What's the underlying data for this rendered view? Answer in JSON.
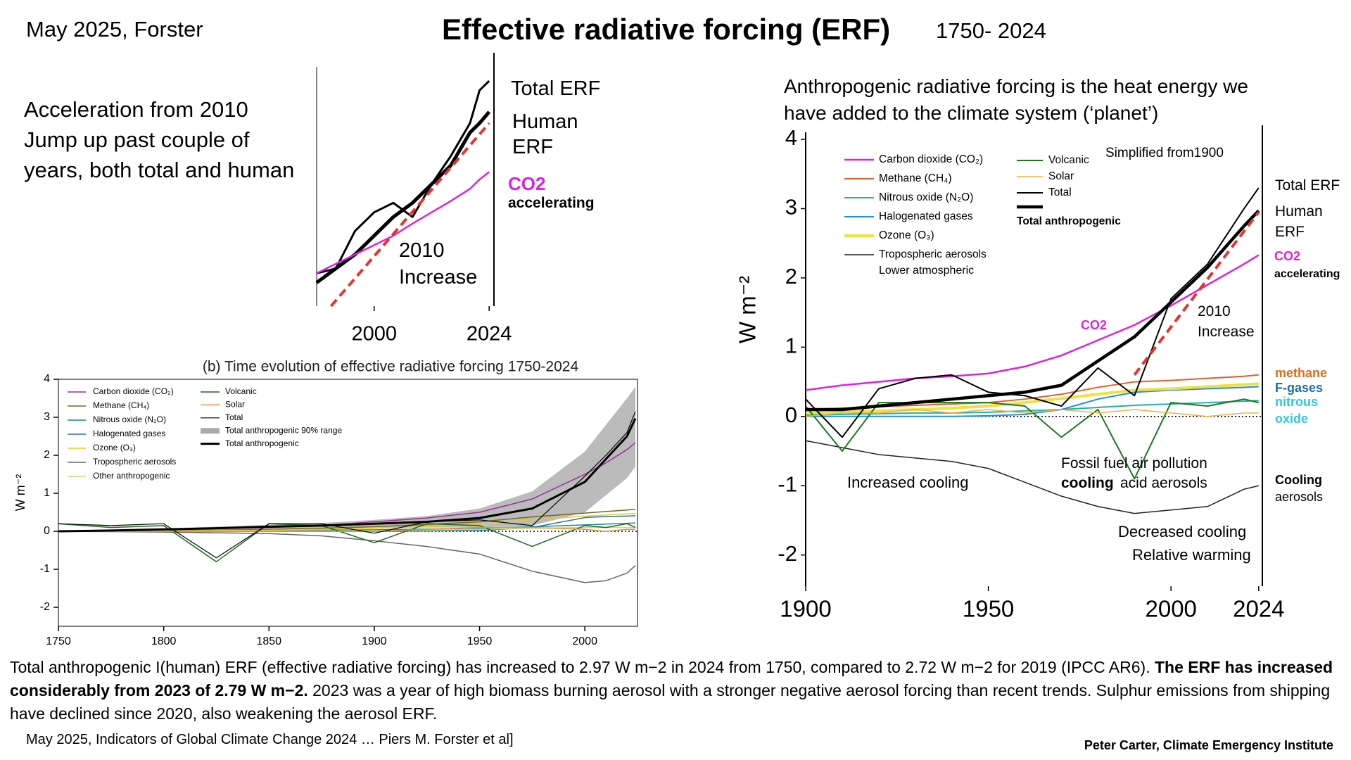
{
  "header": {
    "date": "May 2025, Forster",
    "title": "Effective radiative forcing (ERF)",
    "period": "1750- 2024"
  },
  "summary": "Acceleration from 2010 Jump up past couple of years, both total and human",
  "paragraph": [
    "Total anthropogenic I(human) ERF (effective radiative forcing) has increased to 2.97 W m−2 in 2024 from 1750, compared to 2.72  W m−2 for 2019 (IPCC AR6).",
    "The ERF has increased considerably from 2023 of 2.79 W m−2.",
    "2023 was a year of high biomass burning aerosol with a stronger negative aerosol forcing than recent trends. Sulphur emissions from shipping have declined since 2020, also weakening the aerosol ERF."
  ],
  "source": "May 2025, Indicators of Global Climate Change 2024 … Piers M. Forster et al]",
  "credit": "Peter Carter, Climate Emergency Institute",
  "chart_data": [
    {
      "type": "line",
      "xlim": [
        1988,
        2025
      ],
      "xticks": [
        2000,
        2024
      ],
      "ylim": [
        0.9,
        3.45
      ],
      "x": [
        1988,
        1992,
        1996,
        2000,
        2004,
        2008,
        2012,
        2016,
        2020,
        2022,
        2024
      ],
      "series": [
        {
          "name": "Total ERF",
          "color": "#000000",
          "width": 3,
          "values": [
            1.25,
            1.3,
            1.7,
            1.9,
            2.0,
            1.85,
            2.2,
            2.5,
            2.85,
            3.2,
            3.3
          ]
        },
        {
          "name": "Human ERF",
          "color": "#000000",
          "width": 5,
          "values": [
            1.15,
            1.3,
            1.45,
            1.65,
            1.85,
            2.0,
            2.2,
            2.4,
            2.75,
            2.85,
            2.97
          ]
        },
        {
          "name": "CO2",
          "color": "#e020e0",
          "width": 2.5,
          "values": [
            1.25,
            1.35,
            1.45,
            1.55,
            1.65,
            1.78,
            1.9,
            2.02,
            2.15,
            2.25,
            2.33
          ]
        }
      ],
      "trend": {
        "label": "2010 Increase",
        "color": "#e8322b",
        "x": [
          1991,
          2024
        ],
        "values": [
          0.9,
          2.85
        ]
      },
      "annotations": [
        {
          "text": "accelerating",
          "color": "#000000",
          "bold": true
        }
      ]
    },
    {
      "type": "line",
      "title": "(b) Time evolution of effective radiative forcing 1750-2024",
      "ylabel": "W m⁻²",
      "xlim": [
        1750,
        2025
      ],
      "xticks": [
        1750,
        1800,
        1850,
        1900,
        1950,
        2000
      ],
      "ylim": [
        -2.5,
        4
      ],
      "yticks": [
        -2,
        -1,
        0,
        1,
        2,
        3,
        4
      ],
      "x": [
        1750,
        1775,
        1800,
        1825,
        1850,
        1875,
        1900,
        1925,
        1950,
        1975,
        2000,
        2010,
        2020,
        2024
      ],
      "series": [
        {
          "name": "Carbon dioxide (CO₂)",
          "color": "#9a2ea0",
          "width": 1.5,
          "values": [
            0,
            0.02,
            0.04,
            0.07,
            0.1,
            0.15,
            0.25,
            0.35,
            0.5,
            0.85,
            1.5,
            1.8,
            2.15,
            2.33
          ]
        },
        {
          "name": "Methane (CH₄)",
          "color": "#7a6420",
          "width": 1.5,
          "values": [
            0,
            0.01,
            0.02,
            0.03,
            0.05,
            0.08,
            0.12,
            0.18,
            0.25,
            0.38,
            0.48,
            0.52,
            0.56,
            0.58
          ]
        },
        {
          "name": "Nitrous oxide (N₂O)",
          "color": "#1a8a8a",
          "width": 1.5,
          "values": [
            0,
            0,
            0.01,
            0.01,
            0.02,
            0.03,
            0.04,
            0.06,
            0.08,
            0.12,
            0.17,
            0.19,
            0.21,
            0.22
          ]
        },
        {
          "name": "Halogenated gases",
          "color": "#2a6fa8",
          "width": 1.5,
          "values": [
            0,
            0,
            0,
            0,
            0,
            0,
            0,
            0.01,
            0.02,
            0.1,
            0.36,
            0.39,
            0.4,
            0.41
          ]
        },
        {
          "name": "Ozone (O₃)",
          "color": "#e8c82a",
          "width": 1.5,
          "values": [
            0,
            0.01,
            0.01,
            0.02,
            0.03,
            0.05,
            0.08,
            0.12,
            0.18,
            0.3,
            0.4,
            0.43,
            0.46,
            0.47
          ]
        },
        {
          "name": "Tropospheric aerosols",
          "color": "#666666",
          "width": 1.5,
          "values": [
            0,
            -0.01,
            -0.02,
            -0.04,
            -0.06,
            -0.12,
            -0.25,
            -0.4,
            -0.6,
            -1.05,
            -1.35,
            -1.3,
            -1.1,
            -0.9
          ]
        },
        {
          "name": "Other anthropogenic",
          "color": "#b8e07a",
          "width": 1.5,
          "values": [
            0,
            0,
            0,
            0,
            0,
            0.01,
            0.02,
            0.03,
            0.05,
            0.08,
            0.1,
            0.1,
            0.1,
            0.1
          ]
        },
        {
          "name": "Volcanic",
          "color": "#1a6b1a",
          "width": 1.5,
          "values": [
            0.2,
            0.1,
            0.15,
            -0.8,
            0.2,
            0.15,
            -0.3,
            0.2,
            0.15,
            -0.4,
            0.15,
            0.1,
            0.2,
            0.1
          ]
        },
        {
          "name": "Solar",
          "color": "#e8903a",
          "width": 1.5,
          "values": [
            0,
            0,
            0,
            0,
            0,
            0,
            0,
            0.05,
            0.1,
            0.1,
            0.05,
            0,
            0.05,
            0.05
          ]
        },
        {
          "name": "Total",
          "color": "#000000",
          "width": 1.2,
          "values": [
            0.2,
            0.15,
            0.2,
            -0.7,
            0.2,
            0.2,
            -0.05,
            0.25,
            0.3,
            0.15,
            1.45,
            2.0,
            2.6,
            3.15
          ]
        },
        {
          "name": "Total anthropogenic 90% range",
          "color": "#aaaaaa",
          "low": [
            0,
            0,
            0.02,
            0.04,
            0.06,
            0.08,
            0.1,
            0.1,
            0.1,
            0.15,
            0.5,
            0.95,
            1.4,
            1.7
          ],
          "high": [
            0,
            0.04,
            0.08,
            0.12,
            0.17,
            0.22,
            0.3,
            0.4,
            0.6,
            1.05,
            2.1,
            2.8,
            3.5,
            3.8
          ]
        },
        {
          "name": "Total anthropogenic",
          "color": "#000000",
          "width": 3,
          "values": [
            0,
            0.02,
            0.05,
            0.08,
            0.12,
            0.15,
            0.2,
            0.25,
            0.35,
            0.6,
            1.3,
            1.9,
            2.5,
            2.97
          ]
        }
      ]
    },
    {
      "type": "line",
      "title": "Anthropogenic radiative forcing is the heat energy we have added to the climate system (‘planet’)",
      "ylabel": "W m⁻²",
      "xlim": [
        1900,
        2025
      ],
      "xticks": [
        1900,
        1950,
        2000,
        2024
      ],
      "ylim": [
        -2.45,
        4.0
      ],
      "yticks": [
        -2,
        -1,
        0,
        1,
        2,
        3,
        4
      ],
      "x": [
        1900,
        1910,
        1920,
        1930,
        1940,
        1950,
        1960,
        1970,
        1980,
        1990,
        2000,
        2010,
        2020,
        2024
      ],
      "series": [
        {
          "name": "Carbon dioxide (CO₂)",
          "color": "#e020e0",
          "width": 2.5,
          "values": [
            0.38,
            0.45,
            0.5,
            0.55,
            0.58,
            0.62,
            0.72,
            0.88,
            1.1,
            1.32,
            1.6,
            1.9,
            2.2,
            2.33
          ]
        },
        {
          "name": "Methane (CH₄)",
          "color": "#e0602a",
          "width": 2,
          "values": [
            0.1,
            0.12,
            0.14,
            0.16,
            0.18,
            0.2,
            0.25,
            0.32,
            0.42,
            0.5,
            0.52,
            0.55,
            0.58,
            0.6
          ]
        },
        {
          "name": "Nitrous oxide (N₂O)",
          "color": "#20b0b0",
          "width": 2,
          "values": [
            0.02,
            0.03,
            0.04,
            0.05,
            0.05,
            0.06,
            0.08,
            0.1,
            0.13,
            0.16,
            0.18,
            0.2,
            0.22,
            0.23
          ]
        },
        {
          "name": "Halogenated gases",
          "color": "#1e90e0",
          "width": 2,
          "values": [
            0,
            0,
            0,
            0,
            0,
            0.01,
            0.03,
            0.1,
            0.25,
            0.35,
            0.38,
            0.4,
            0.42,
            0.43
          ]
        },
        {
          "name": "Ozone (O₃)",
          "color": "#f0e040",
          "width": 4,
          "values": [
            0.05,
            0.06,
            0.08,
            0.1,
            0.12,
            0.15,
            0.2,
            0.26,
            0.32,
            0.38,
            0.4,
            0.43,
            0.46,
            0.47
          ]
        },
        {
          "name": "Tropospheric aerosols",
          "color": "#222222",
          "width": 1.5,
          "values": [
            -0.35,
            -0.45,
            -0.55,
            -0.6,
            -0.65,
            -0.75,
            -0.95,
            -1.15,
            -1.3,
            -1.4,
            -1.35,
            -1.3,
            -1.05,
            -1.0
          ]
        },
        {
          "name": "Volcanic",
          "color": "#1a7a1a",
          "width": 2,
          "values": [
            0.15,
            -0.5,
            0.2,
            0.2,
            0.2,
            0.2,
            0.15,
            -0.3,
            0.1,
            -0.9,
            0.2,
            0.15,
            0.25,
            0.2
          ]
        },
        {
          "name": "Solar",
          "color": "#f0b040",
          "width": 1.5,
          "values": [
            0,
            0.05,
            0.05,
            0.1,
            0.05,
            0.1,
            0.05,
            0.1,
            0.05,
            0.1,
            0.05,
            0,
            0.05,
            0.05
          ]
        },
        {
          "name": "Total",
          "color": "#000000",
          "width": 2,
          "values": [
            0.25,
            -0.3,
            0.4,
            0.55,
            0.6,
            0.35,
            0.3,
            0.15,
            0.7,
            0.3,
            1.7,
            2.2,
            3.0,
            3.3
          ]
        },
        {
          "name": "Total anthropogenic",
          "color": "#000000",
          "width": 4.5,
          "values": [
            0.1,
            0.1,
            0.15,
            0.2,
            0.25,
            0.3,
            0.35,
            0.45,
            0.8,
            1.15,
            1.65,
            2.15,
            2.75,
            2.97
          ]
        }
      ],
      "trend": {
        "label": "2010 Increase",
        "color": "#e8322b",
        "x": [
          1990,
          2024
        ],
        "values": [
          0.6,
          2.95
        ]
      },
      "annotations": [
        {
          "text": "Simplified  from1900",
          "color": "#000000"
        },
        {
          "text": "Lower atmospheric",
          "color": "#000000"
        },
        {
          "text": "Total ERF",
          "color": "#000000"
        },
        {
          "text": "Human ERF",
          "color": "#000000"
        },
        {
          "text": "CO2",
          "color": "#e020e0",
          "bold": true
        },
        {
          "text": "accelerating",
          "color": "#000000",
          "bold": true
        },
        {
          "text": "methane",
          "color": "#e06a1a",
          "bold": true
        },
        {
          "text": "F-gases",
          "color": "#1e6fb0",
          "bold": true
        },
        {
          "text": "nitrous oxide",
          "color": "#30c8d8",
          "bold": true
        },
        {
          "text": "CO2",
          "color": "#e020e0",
          "bold": true
        },
        {
          "text": "Fossil fuel air pollution",
          "color": "#000000"
        },
        {
          "text": "cooling",
          "color": "#000000",
          "bold": true
        },
        {
          "text": "acid aerosols",
          "color": "#000000"
        },
        {
          "text": "Increased cooling",
          "color": "#000000"
        },
        {
          "text": "Decreased cooling",
          "color": "#000000"
        },
        {
          "text": "Relative warming",
          "color": "#000000"
        },
        {
          "text": "Cooling",
          "color": "#000000",
          "bold": true
        },
        {
          "text": "aerosols",
          "color": "#000000"
        }
      ]
    }
  ]
}
